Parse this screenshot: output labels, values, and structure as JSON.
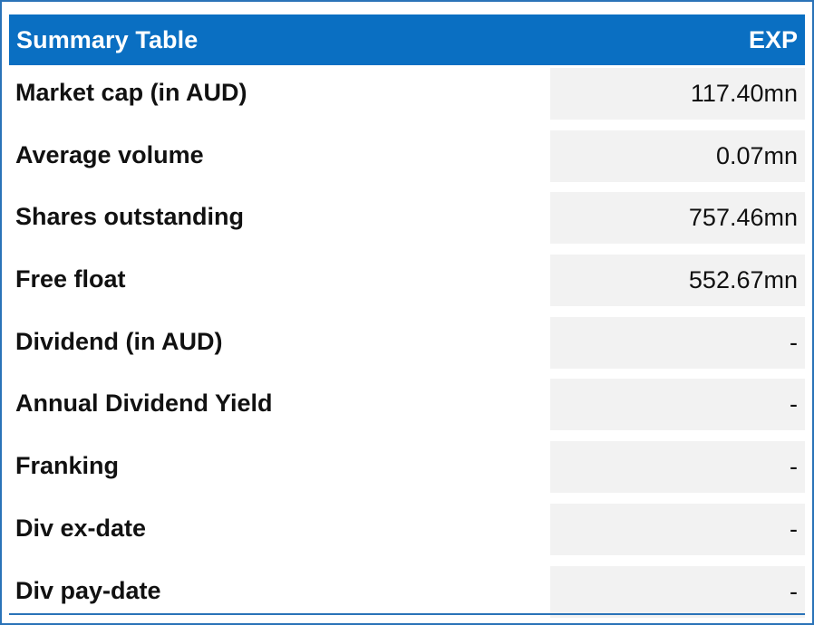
{
  "table": {
    "title": "Summary Table",
    "ticker": "EXP",
    "rows": [
      {
        "label": "Market cap (in AUD)",
        "value": "117.40mn"
      },
      {
        "label": "Average volume",
        "value": "0.07mn"
      },
      {
        "label": "Shares outstanding",
        "value": "757.46mn"
      },
      {
        "label": "Free float",
        "value": "552.67mn"
      },
      {
        "label": "Dividend (in AUD)",
        "value": "-"
      },
      {
        "label": "Annual Dividend Yield",
        "value": "-"
      },
      {
        "label": "Franking",
        "value": "-"
      },
      {
        "label": "Div ex-date",
        "value": "-"
      },
      {
        "label": "Div pay-date",
        "value": "-"
      }
    ]
  },
  "colors": {
    "header_bg": "#0a6fc2",
    "border": "#2a73b8",
    "value_cell_bg": "#f2f2f2"
  }
}
